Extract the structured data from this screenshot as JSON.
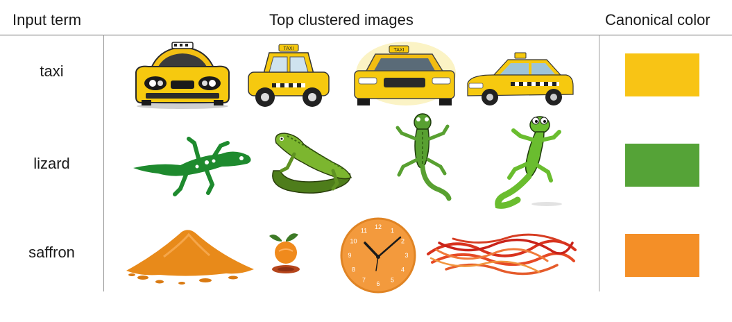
{
  "headers": {
    "input_term": "Input term",
    "top_images": "Top clustered images",
    "canonical_color": "Canonical color"
  },
  "rows": [
    {
      "term": "taxi",
      "color": "#f8c415",
      "images": [
        "taxi-front-icon",
        "taxi-side-cartoon-icon",
        "taxi-sedan-icon",
        "taxi-three-quarter-icon"
      ]
    },
    {
      "term": "lizard",
      "color": "#55a337",
      "images": [
        "gecko-silhouette-icon",
        "iguana-icon",
        "gecko-top-view-icon",
        "cartoon-lizard-icon"
      ]
    },
    {
      "term": "saffron",
      "color": "#f48f27",
      "images": [
        "saffron-powder-pile-icon",
        "saffron-fruit-icon",
        "orange-wall-clock-icon",
        "saffron-threads-icon"
      ]
    }
  ],
  "clock": {
    "numerals": [
      "12",
      "1",
      "2",
      "3",
      "4",
      "5",
      "6",
      "7",
      "8",
      "9",
      "10",
      "11"
    ]
  }
}
